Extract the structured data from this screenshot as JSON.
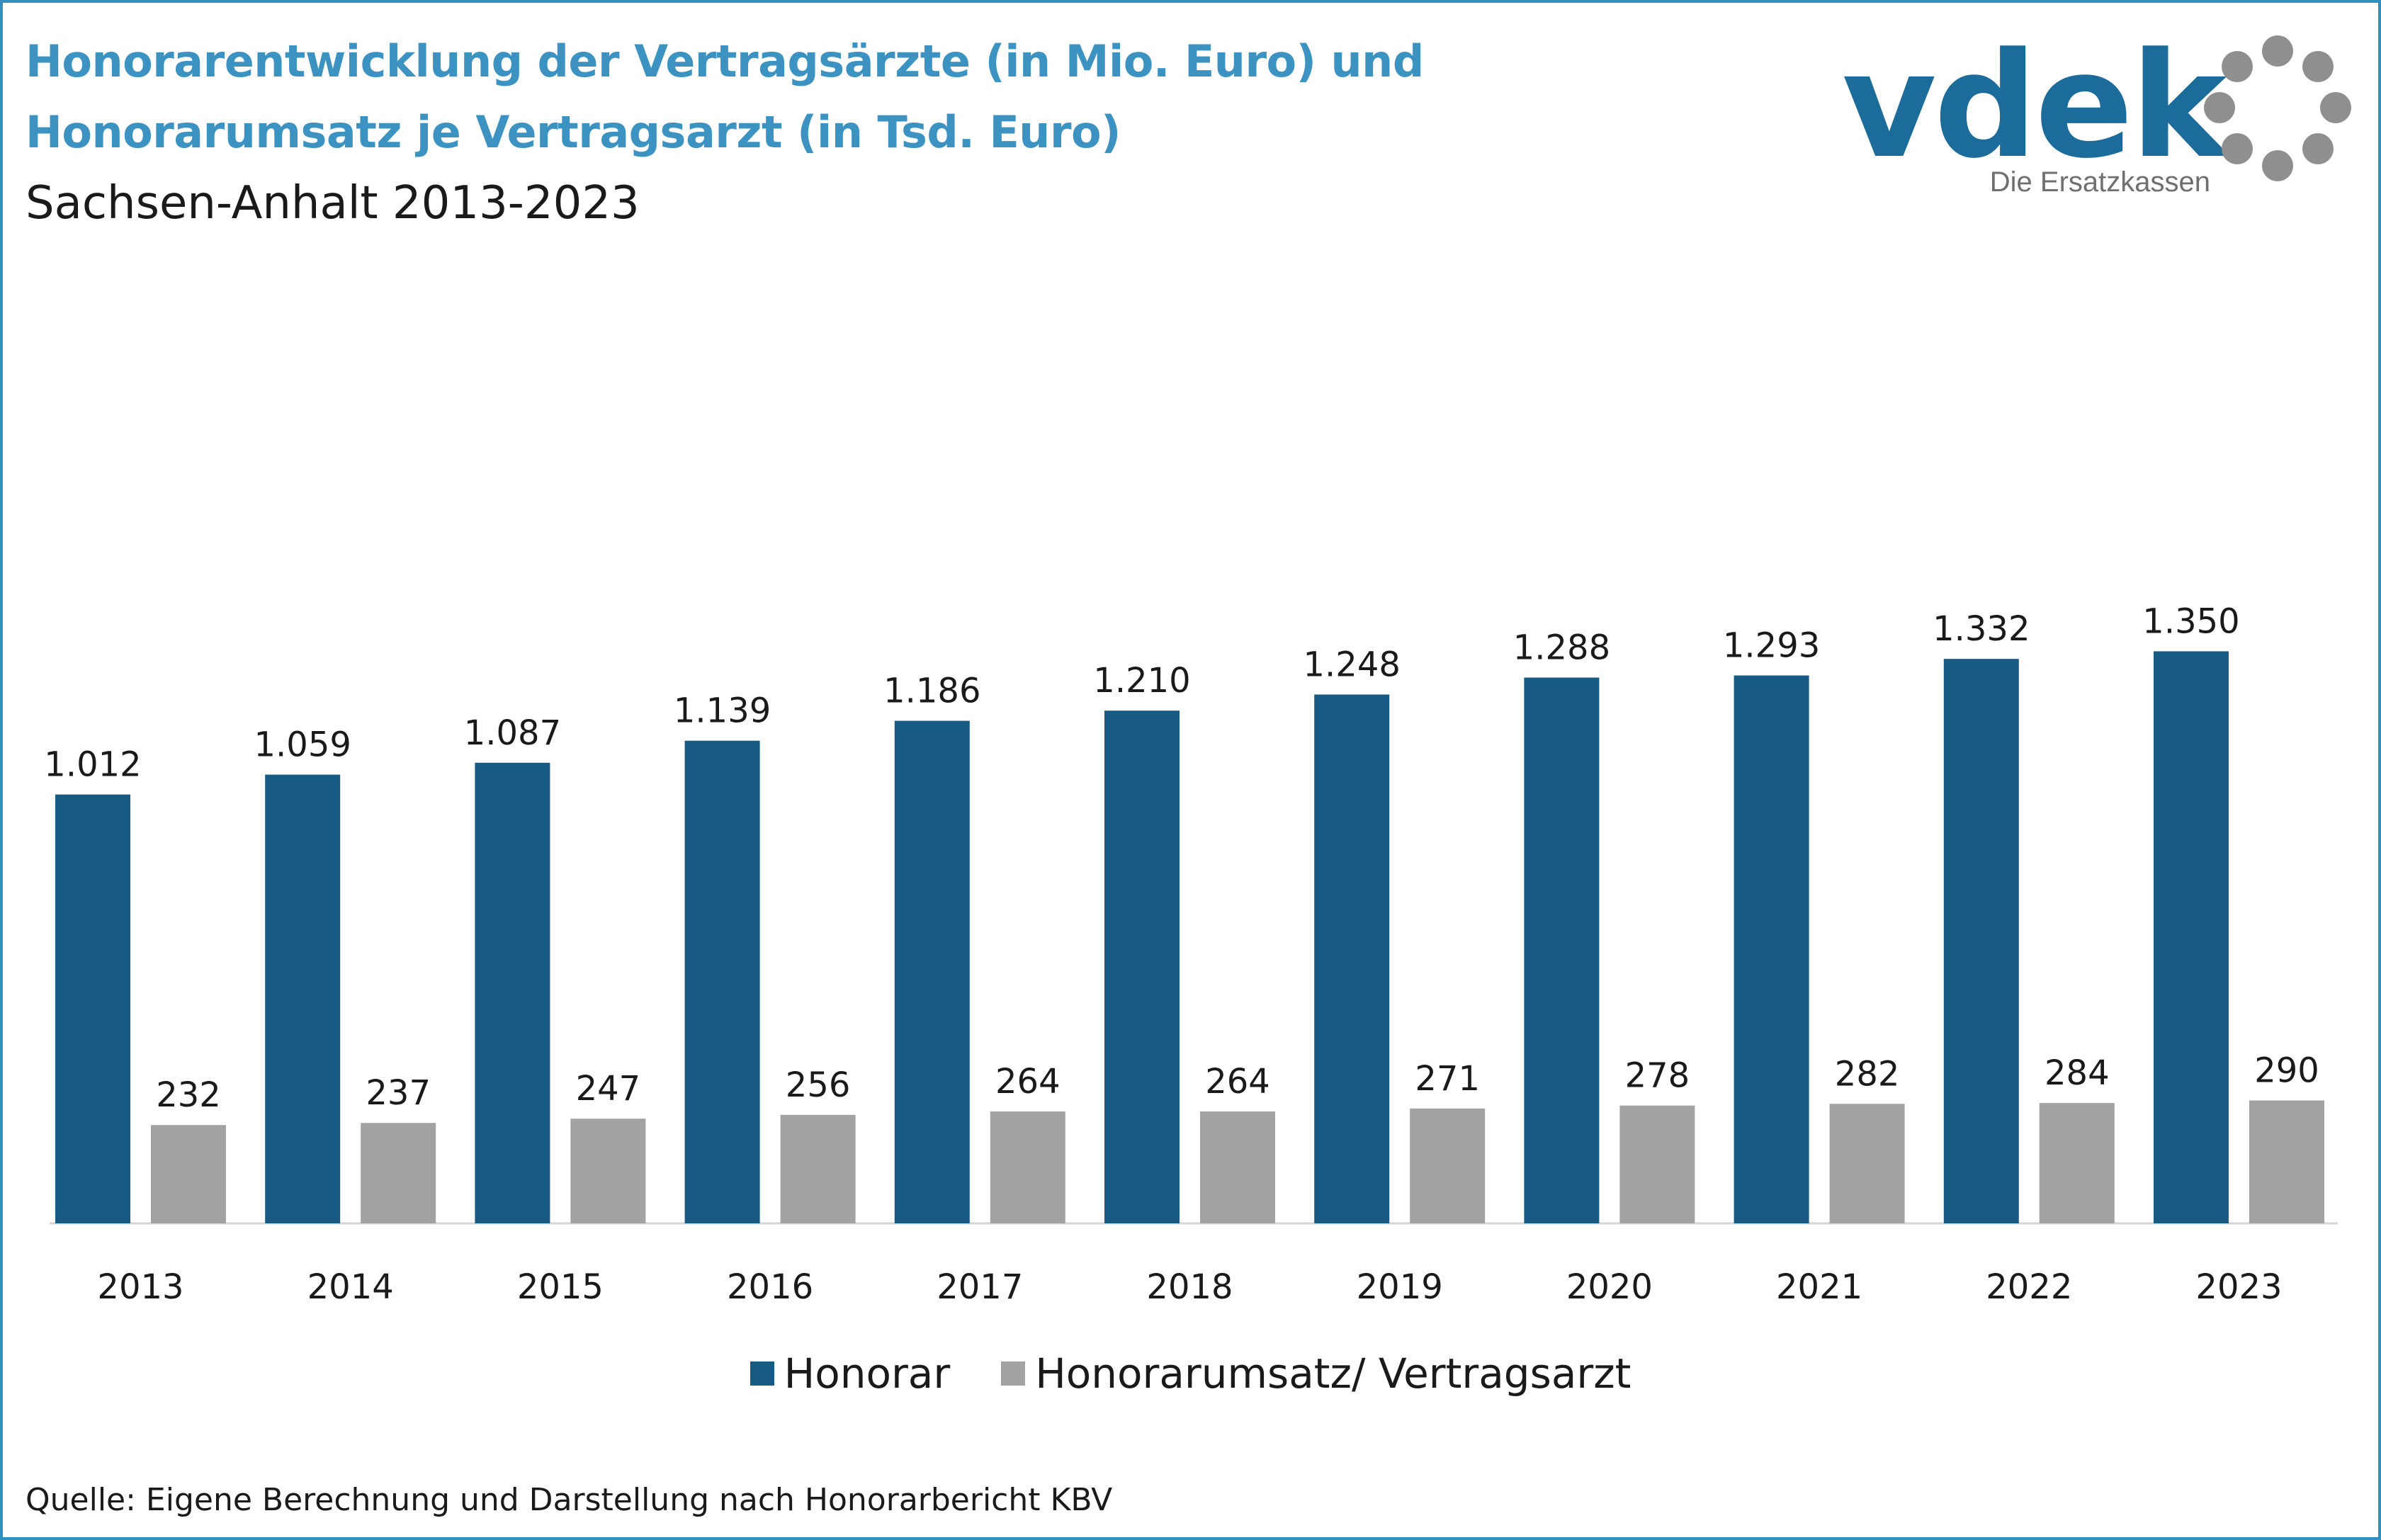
{
  "header": {
    "title_line1": "Honorarentwicklung der Vertragsärzte (in Mio. Euro) und",
    "title_line2": "Honorarumsatz je Vertragsarzt (in Tsd. Euro)",
    "subtitle": "Sachsen-Anhalt 2013-2023"
  },
  "logo": {
    "wordmark": "vdek",
    "tagline": "Die Ersatzkassen",
    "wordmark_color": "#1b6c9a",
    "ring_color": "#8f8f8f"
  },
  "source": "Quelle: Eigene Berechnung und Darstellung nach Honorarbericht KBV",
  "colors": {
    "title": "#3c93c2",
    "frame": "#2f8fbf",
    "honorar": "#175b85",
    "umsatz": "#a2a2a2"
  },
  "chart_data": {
    "type": "bar",
    "categories": [
      "2013",
      "2014",
      "2015",
      "2016",
      "2017",
      "2018",
      "2019",
      "2020",
      "2021",
      "2022",
      "2023"
    ],
    "series": [
      {
        "name": "Honorar",
        "color": "#175b85",
        "values": [
          1012,
          1059,
          1087,
          1139,
          1186,
          1210,
          1248,
          1288,
          1293,
          1332,
          1350
        ],
        "labels": [
          "1.012",
          "1.059",
          "1.087",
          "1.139",
          "1.186",
          "1.210",
          "1.248",
          "1.288",
          "1.293",
          "1.332",
          "1.350"
        ]
      },
      {
        "name": "Honorarumsatz/ Vertragsarzt",
        "color": "#a2a2a2",
        "values": [
          232,
          237,
          247,
          256,
          264,
          264,
          271,
          278,
          282,
          284,
          290
        ],
        "labels": [
          "232",
          "237",
          "247",
          "256",
          "264",
          "264",
          "271",
          "278",
          "282",
          "284",
          "290"
        ]
      }
    ],
    "legend_position": "bottom",
    "grid": false,
    "y_axis_visible": false,
    "data_labels": true
  }
}
